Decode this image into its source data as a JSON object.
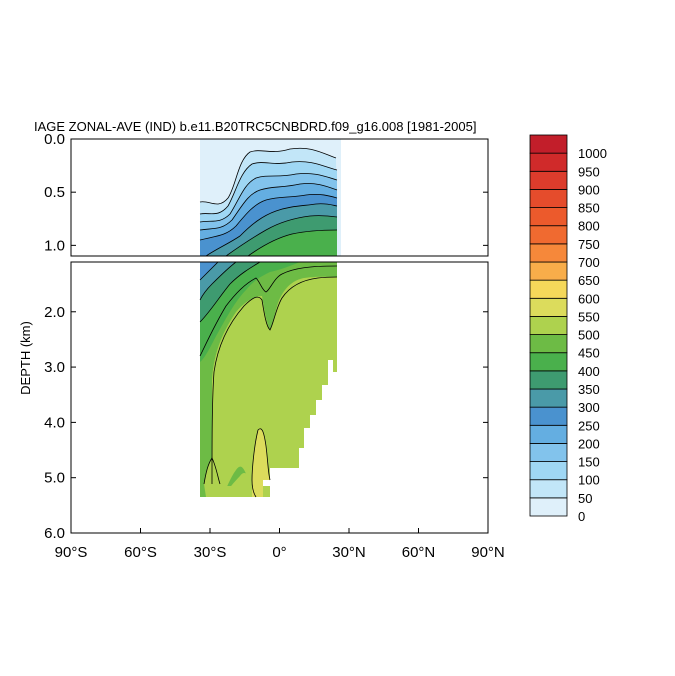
{
  "chart_data": {
    "type": "heatmap",
    "title": "IAGE ZONAL-AVE (IND) b.e11.B20TRC5CNBDRD.f09_g16.008 [1981-2005]",
    "ylabel": "DEPTH (km)",
    "xlabel": "",
    "x_ticks": [
      "90°S",
      "60°S",
      "30°S",
      "0°",
      "30°N",
      "60°N",
      "90°N"
    ],
    "x_tick_values": [
      -90,
      -60,
      -30,
      0,
      30,
      60,
      90
    ],
    "xlim": [
      -90,
      90
    ],
    "upper_panel": {
      "ylim": [
        0.0,
        1.1
      ],
      "y_ticks": [
        "0.0",
        "0.5",
        "1.0"
      ],
      "y_tick_values": [
        0.0,
        0.5,
        1.0
      ]
    },
    "lower_panel": {
      "ylim": [
        1.1,
        6.0
      ],
      "y_ticks": [
        "2.0",
        "3.0",
        "4.0",
        "5.0",
        "6.0"
      ],
      "y_tick_values": [
        2.0,
        3.0,
        4.0,
        5.0,
        6.0
      ]
    },
    "colorbar": {
      "levels": [
        "0",
        "50",
        "100",
        "150",
        "200",
        "250",
        "300",
        "350",
        "400",
        "450",
        "500",
        "550",
        "600",
        "650",
        "700",
        "750",
        "800",
        "850",
        "900",
        "950",
        "1000"
      ],
      "colors": [
        "#dff0fa",
        "#c2e6f8",
        "#9fd7f4",
        "#82c3ec",
        "#64aee1",
        "#4a92cf",
        "#4a9aa8",
        "#3e9b70",
        "#4ab04c",
        "#6dbb45",
        "#aed24e",
        "#dcdc5c",
        "#f5d85a",
        "#f8ad4a",
        "#f6883a",
        "#f06a30",
        "#ec5a2c",
        "#e54c2c",
        "#dc3c2c",
        "#d02a2a",
        "#c21e2a"
      ]
    }
  }
}
